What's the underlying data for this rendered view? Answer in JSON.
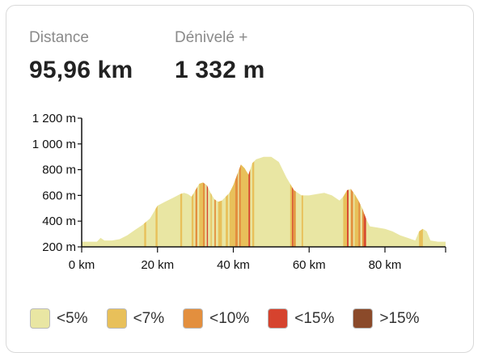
{
  "stats": {
    "distance_label": "Distance",
    "distance_value": "95,96 km",
    "elevation_label": "Dénivelé +",
    "elevation_value": "1 332 m"
  },
  "legend": [
    {
      "label": "<5%",
      "color": "#e9e6a3"
    },
    {
      "label": "<7%",
      "color": "#e8c05a"
    },
    {
      "label": "<10%",
      "color": "#e38f3e"
    },
    {
      "label": "<15%",
      "color": "#d6432e"
    },
    {
      "label": ">15%",
      "color": "#8b4a2a"
    }
  ],
  "chart_data": {
    "type": "area",
    "xlabel": "",
    "ylabel": "",
    "xlim": [
      0,
      96
    ],
    "ylim": [
      200,
      1200
    ],
    "x_ticks": [
      0,
      20,
      40,
      60,
      80
    ],
    "x_tick_labels": [
      "0 km",
      "20 km",
      "40 km",
      "60 km",
      "80 km"
    ],
    "y_ticks": [
      200,
      400,
      600,
      800,
      1000,
      1200
    ],
    "y_tick_labels": [
      "200 m",
      "400 m",
      "600 m",
      "800 m",
      "1 000 m",
      "1 200 m"
    ],
    "profile": {
      "x": [
        0,
        2,
        4,
        5,
        6,
        8,
        10,
        12,
        14,
        16,
        18,
        19,
        20,
        22,
        24,
        26,
        27,
        28,
        29,
        30,
        31,
        32,
        33,
        34,
        35,
        36,
        37,
        38,
        39,
        40,
        41,
        42,
        43,
        44,
        45,
        46,
        48,
        50,
        52,
        54,
        56,
        58,
        60,
        62,
        64,
        66,
        68,
        69,
        70,
        71,
        72,
        73,
        74,
        75,
        76,
        78,
        80,
        82,
        84,
        86,
        88,
        89,
        90,
        91,
        92,
        94,
        96
      ],
      "y": [
        240,
        240,
        240,
        270,
        250,
        250,
        260,
        290,
        330,
        370,
        420,
        470,
        520,
        550,
        580,
        610,
        620,
        610,
        590,
        640,
        690,
        700,
        680,
        620,
        570,
        550,
        560,
        590,
        620,
        680,
        760,
        840,
        810,
        760,
        850,
        880,
        900,
        900,
        860,
        740,
        640,
        600,
        600,
        610,
        620,
        600,
        560,
        590,
        640,
        650,
        610,
        560,
        500,
        420,
        360,
        350,
        340,
        320,
        290,
        270,
        250,
        320,
        340,
        320,
        250,
        240,
        240
      ]
    },
    "steep_segments": {
      "lt7": [
        [
          16.5,
          17
        ],
        [
          19.5,
          20
        ],
        [
          26,
          26.5
        ],
        [
          29,
          29.5
        ],
        [
          31,
          32
        ],
        [
          34,
          34.3
        ],
        [
          36,
          37
        ],
        [
          38,
          38.6
        ],
        [
          39,
          40.5
        ],
        [
          42,
          44
        ],
        [
          44,
          44.5
        ],
        [
          45,
          45.5
        ],
        [
          55,
          56.5
        ],
        [
          58,
          58.4
        ],
        [
          69,
          70
        ],
        [
          72,
          73
        ],
        [
          89,
          90
        ]
      ],
      "lt10": [
        [
          30,
          30.5
        ],
        [
          32,
          32.5
        ],
        [
          35,
          35.4
        ],
        [
          40.5,
          41.2
        ],
        [
          41.5,
          42
        ],
        [
          56,
          56.4
        ],
        [
          71,
          71.6
        ],
        [
          73,
          73.5
        ],
        [
          74,
          75
        ]
      ],
      "lt15": [
        [
          33,
          33.3
        ],
        [
          44,
          44.4
        ],
        [
          55.5,
          55.8
        ],
        [
          70,
          70.4
        ],
        [
          74.5,
          75
        ]
      ],
      "gt15": []
    }
  }
}
